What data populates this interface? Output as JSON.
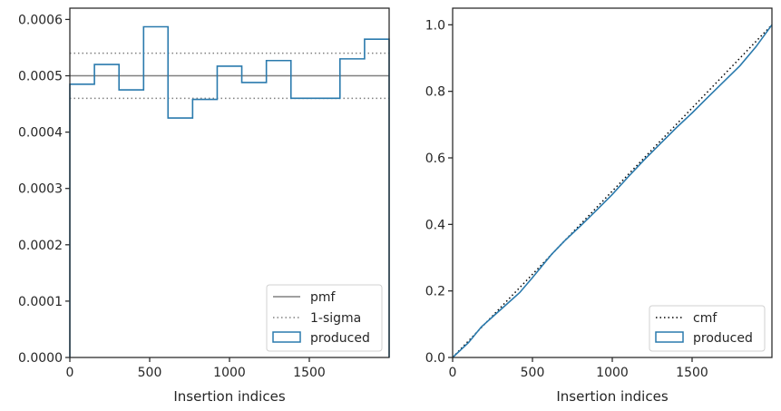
{
  "chart_data": [
    {
      "type": "histogram-step",
      "xlabel": "Insertion indices",
      "ylabel": "",
      "xlim": [
        0,
        2000
      ],
      "ylim": [
        0,
        0.00062
      ],
      "x_ticks": [
        0,
        500,
        1000,
        1500
      ],
      "x_tick_labels": [
        "0",
        "500",
        "1000",
        "1500"
      ],
      "y_ticks": [
        0,
        0.0001,
        0.0002,
        0.0003,
        0.0004,
        0.0005,
        0.0006
      ],
      "y_tick_labels": [
        "0.0000",
        "0.0001",
        "0.0002",
        "0.0003",
        "0.0004",
        "0.0005",
        "0.0006"
      ],
      "bin_edges": [
        0,
        154,
        308,
        462,
        615,
        769,
        923,
        1077,
        1231,
        1385,
        1538,
        1692,
        1846,
        2000
      ],
      "series": [
        {
          "name": "produced",
          "values": [
            0.000485,
            0.00052,
            0.000475,
            0.000587,
            0.000425,
            0.000458,
            0.000517,
            0.000488,
            0.000527,
            0.00046,
            0.00046,
            0.00053,
            0.000565
          ],
          "color": "#2a7aad"
        }
      ],
      "reference_lines": [
        {
          "name": "pmf",
          "y": 0.0005,
          "style": "solid",
          "color": "#808080"
        },
        {
          "name": "1-sigma",
          "y": [
            0.00054,
            0.00046
          ],
          "style": "dotted",
          "color": "#808080"
        }
      ],
      "legend": {
        "position": "lower-right",
        "entries": [
          "pmf",
          "1-sigma",
          "produced"
        ]
      }
    },
    {
      "type": "line",
      "xlabel": "Insertion indices",
      "ylabel": "",
      "xlim": [
        0,
        2000
      ],
      "ylim": [
        0,
        1.05
      ],
      "x_ticks": [
        0,
        500,
        1000,
        1500
      ],
      "x_tick_labels": [
        "0",
        "500",
        "1000",
        "1500"
      ],
      "y_ticks": [
        0,
        0.2,
        0.4,
        0.6,
        0.8,
        1.0
      ],
      "y_tick_labels": [
        "0.0",
        "0.2",
        "0.4",
        "0.6",
        "0.8",
        "1.0"
      ],
      "series": [
        {
          "name": "cmf",
          "style": "dotted",
          "color": "#000000",
          "x": [
            0,
            2000
          ],
          "y": [
            0,
            1.0
          ]
        },
        {
          "name": "produced",
          "style": "solid",
          "color": "#2a7aad",
          "x": [
            0,
            100,
            180,
            250,
            350,
            420,
            500,
            560,
            620,
            700,
            800,
            900,
            1000,
            1100,
            1200,
            1300,
            1400,
            1500,
            1600,
            1700,
            1800,
            1900,
            2000
          ],
          "y": [
            0,
            0.045,
            0.092,
            0.122,
            0.165,
            0.195,
            0.24,
            0.275,
            0.31,
            0.35,
            0.395,
            0.442,
            0.49,
            0.543,
            0.594,
            0.642,
            0.69,
            0.735,
            0.783,
            0.83,
            0.877,
            0.934,
            1.0
          ]
        }
      ],
      "legend": {
        "position": "lower-right",
        "entries": [
          "cmf",
          "produced"
        ]
      }
    }
  ]
}
